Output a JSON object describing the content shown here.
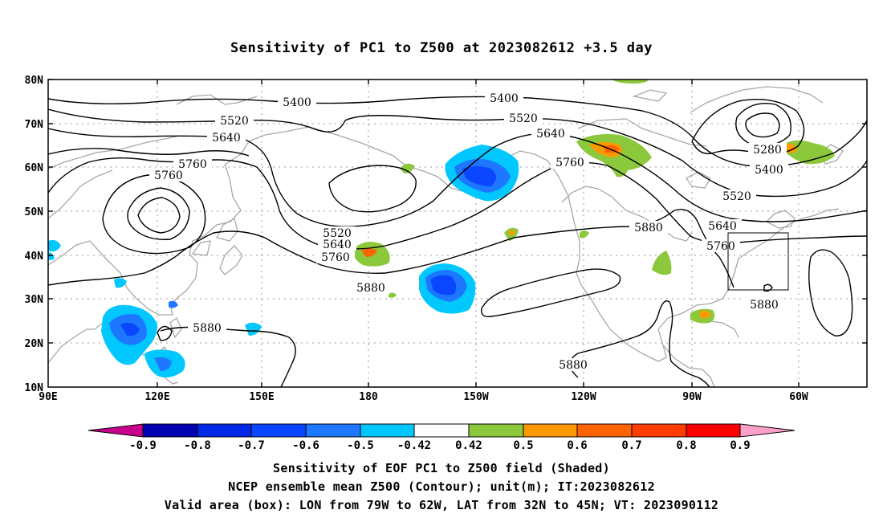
{
  "title": "Sensitivity of PC1 to Z500 at 2023082612 +3.5 day",
  "map": {
    "lat_labels": [
      "80N",
      "70N",
      "60N",
      "50N",
      "40N",
      "30N",
      "20N",
      "10N"
    ],
    "lon_labels": [
      "90E",
      "120E",
      "150E",
      "180",
      "150W",
      "120W",
      "90W",
      "60W"
    ],
    "contour_labels": {
      "c5400a": "5400",
      "c5400b": "5400",
      "c5400c": "5400",
      "c5520a": "5520",
      "c5520b": "5520",
      "c5520c": "5520",
      "c5520d": "5520",
      "c5640a": "5640",
      "c5640b": "5640",
      "c5640c": "5640",
      "c5640d": "5640",
      "c5760a": "5760",
      "c5760b": "5760",
      "c5760c": "5760",
      "c5760d": "5760",
      "c5760e": "5760",
      "c5880a": "5880",
      "c5880b": "5880",
      "c5880c": "5880",
      "c5880d": "5880",
      "c5880e": "5880",
      "c5280a": "5280"
    },
    "valid_box": {
      "lon_min": -79,
      "lon_max": -62,
      "lat_min": 32,
      "lat_max": 45
    }
  },
  "colorbar": {
    "labels": [
      "-0.9",
      "-0.8",
      "-0.7",
      "-0.6",
      "-0.5",
      "-0.42",
      "0.42",
      "0.5",
      "0.6",
      "0.7",
      "0.8",
      "0.9"
    ],
    "colors": [
      "#0000b4",
      "#0028e6",
      "#0a46ff",
      "#1e78ff",
      "#00c8ff",
      "#ffffff",
      "#8cc83c",
      "#ff9900",
      "#ff6400",
      "#ff3c00",
      "#ff0000"
    ],
    "under_color": "#c8008c",
    "over_color": "#ffa0c8"
  },
  "captions": {
    "line1": "Sensitivity of EOF PC1 to Z500 field (Shaded)",
    "line2": "NCEP ensemble mean Z500 (Contour); unit(m); IT:2023082612",
    "line3": "Valid area (box): LON from 79W to 62W, LAT from 32N to 45N; VT: 2023090112"
  }
}
